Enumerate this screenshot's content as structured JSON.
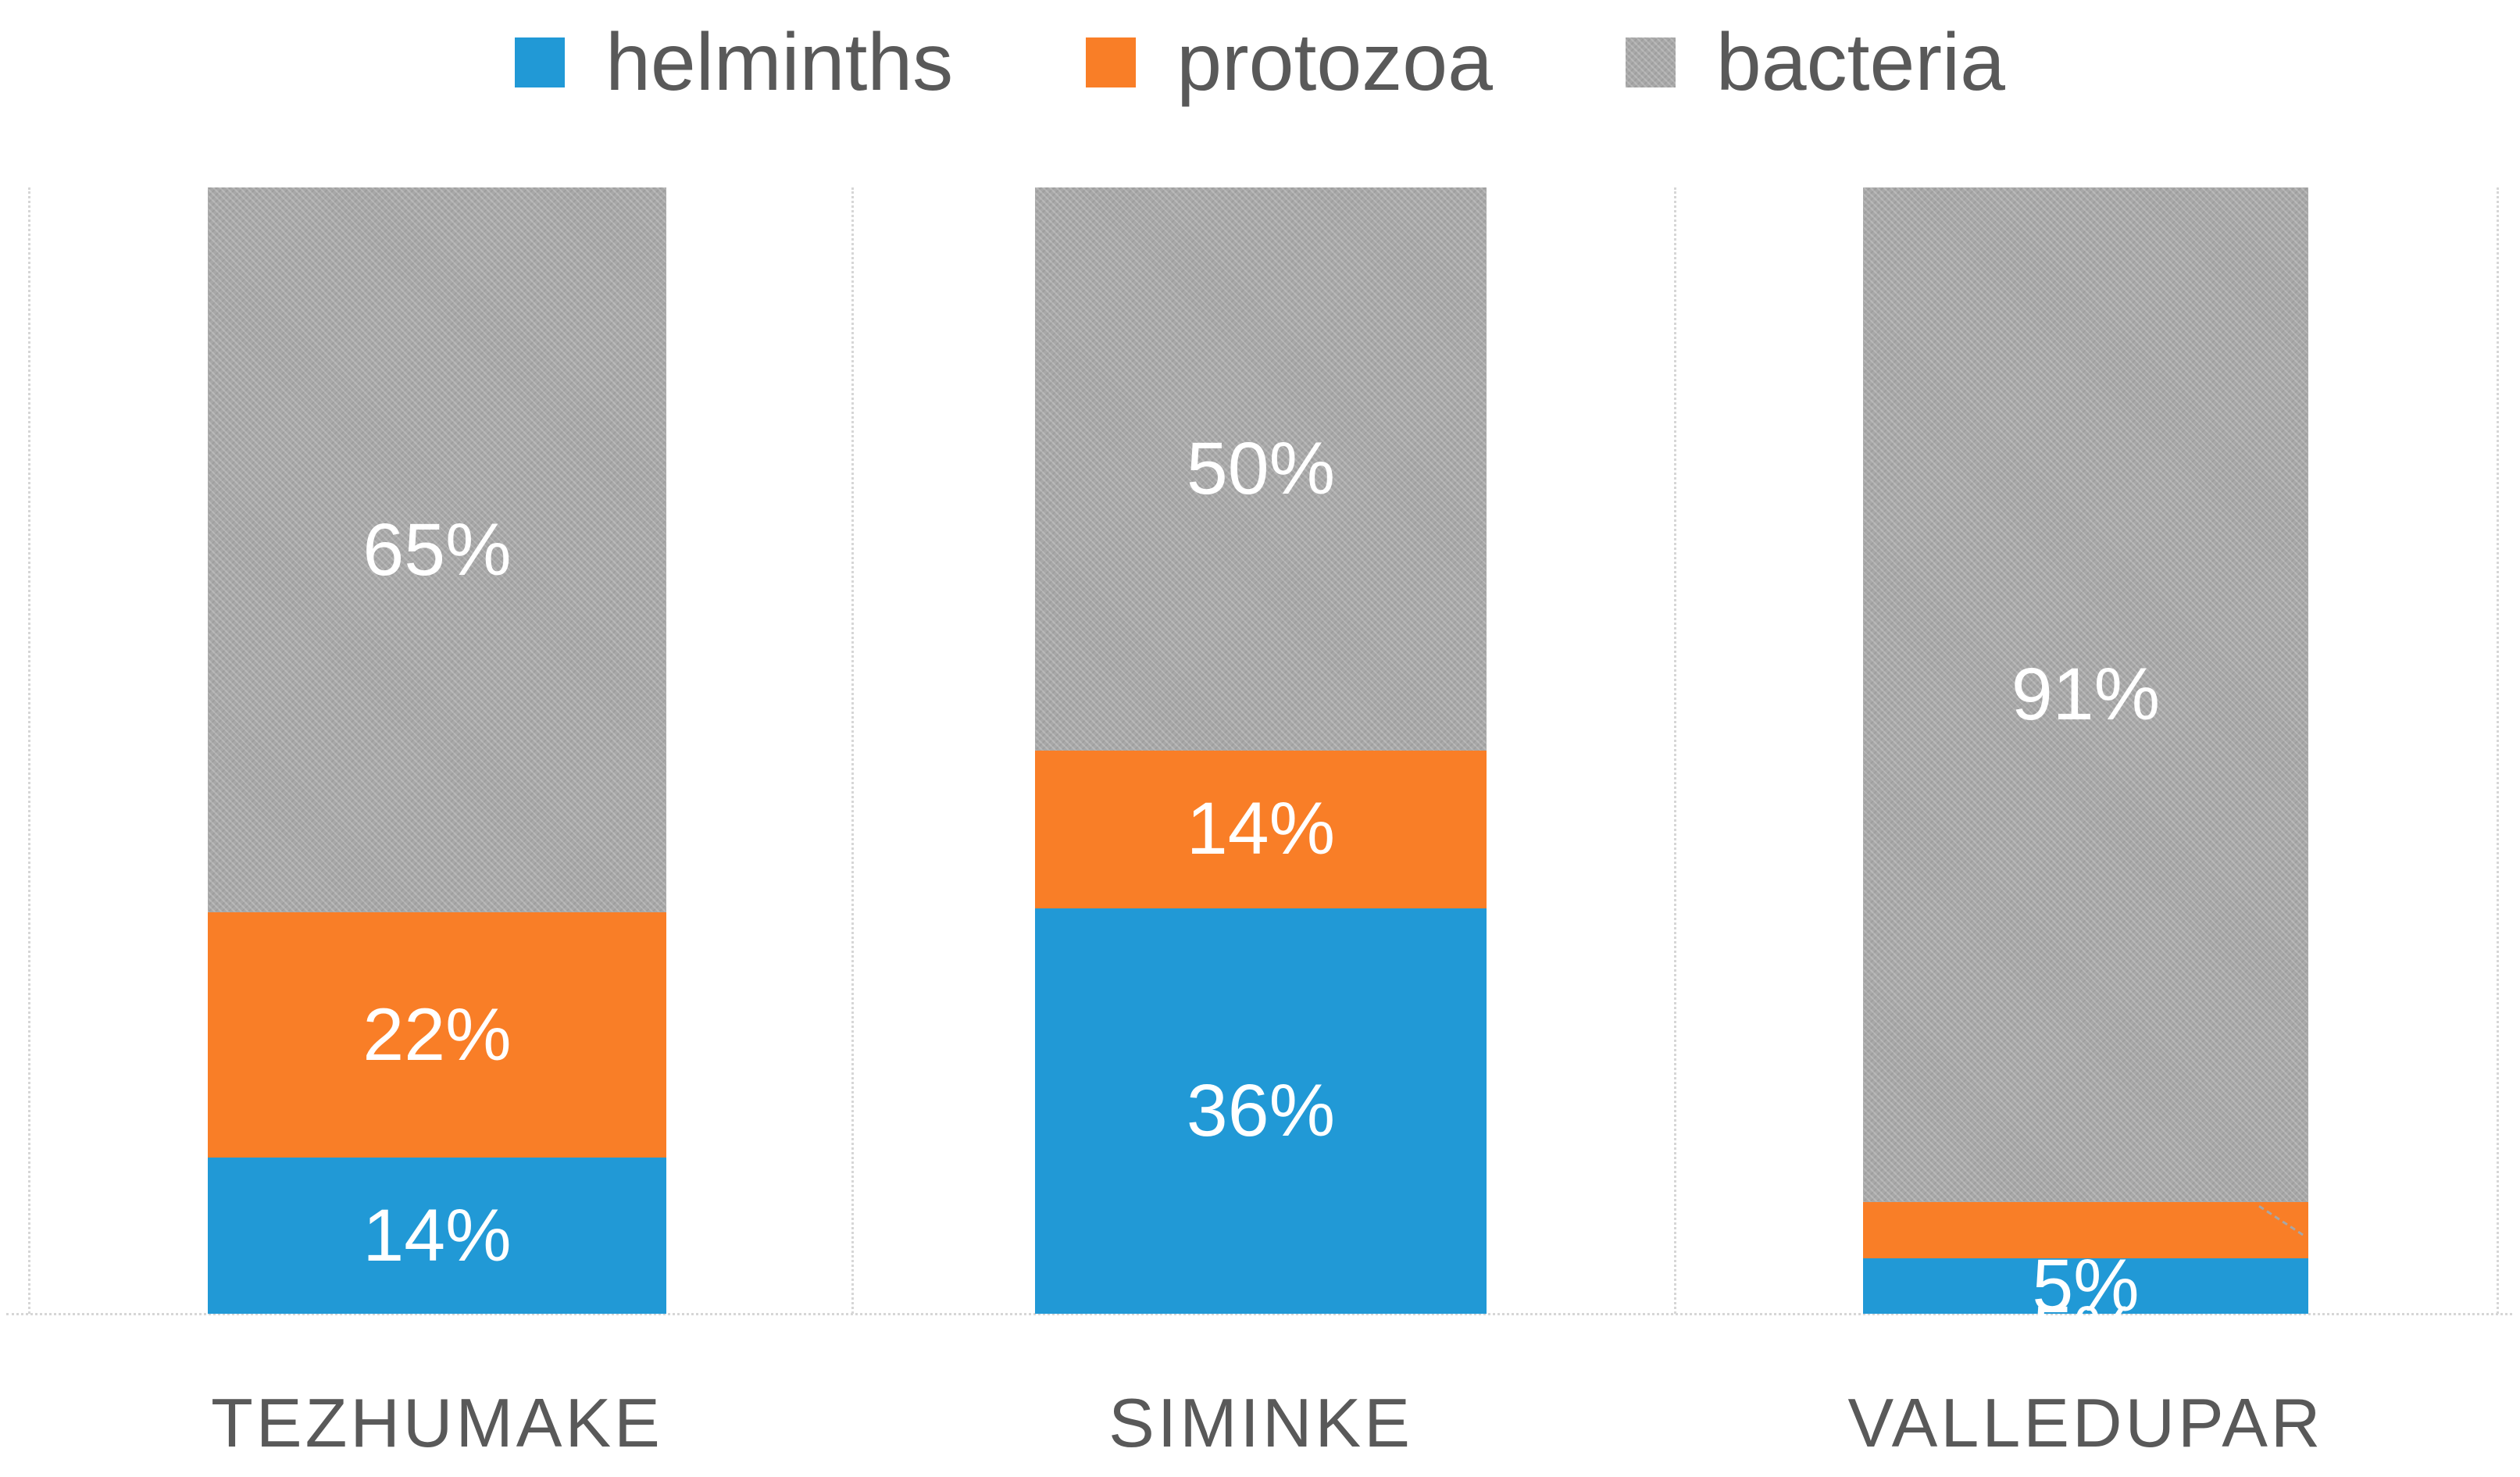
{
  "chart_data": {
    "type": "bar",
    "variant": "stacked-100-percent",
    "orientation": "vertical",
    "categories": [
      "TEZHUMAKE",
      "SIMINKE",
      "VALLEDUPAR"
    ],
    "series": [
      {
        "name": "helminths",
        "color": "#2199D6",
        "values": [
          14,
          36,
          5
        ]
      },
      {
        "name": "protozoa",
        "color": "#F97E27",
        "values": [
          22,
          14,
          5
        ]
      },
      {
        "name": "bacteria",
        "color": "#A8A8A8",
        "values": [
          65,
          50,
          91
        ]
      }
    ],
    "data_labels": {
      "color": "#FFFFFF",
      "values": [
        [
          "14%",
          "36%",
          "5%"
        ],
        [
          "22%",
          "14%",
          "5%"
        ],
        [
          "65%",
          "50%",
          "91%"
        ]
      ]
    },
    "legend": {
      "position": "top",
      "labels": [
        "helminths",
        "protozoa",
        "bacteria"
      ]
    },
    "axes": {
      "y_axis_visible": false,
      "ylim": [
        0,
        100
      ],
      "x_tick_labels": [
        "TEZHUMAKE",
        "SIMINKE",
        "VALLEDUPAR"
      ]
    },
    "grid": {
      "style": "dotted",
      "color": "#D6D6D6",
      "vertical_category_separators": true,
      "baseline": true
    },
    "callouts": [
      {
        "category_index": 2,
        "series_index": 1,
        "type": "label-above-segment-with-leader-line",
        "leader_color": "#A6A6A6"
      }
    ],
    "text_color": "#595959",
    "background": "#FFFFFF"
  }
}
